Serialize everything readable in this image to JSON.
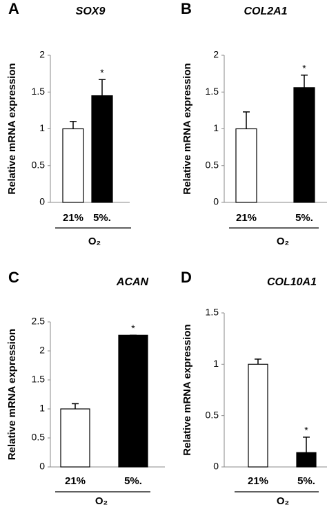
{
  "chart_data": [
    {
      "type": "bar",
      "panel": "A",
      "title": "SOX9",
      "ylabel": "Relative mRNA expression",
      "xlabel": "O₂",
      "categories": [
        "21%",
        "5%."
      ],
      "values": [
        1.0,
        1.45
      ],
      "errors": [
        0.1,
        0.22
      ],
      "annotations": [
        null,
        "*"
      ],
      "colors": [
        "#ffffff",
        "#000000"
      ],
      "ylim": [
        0,
        2
      ],
      "yticks": [
        0,
        0.5,
        1,
        1.5,
        2
      ]
    },
    {
      "type": "bar",
      "panel": "B",
      "title": "COL2A1",
      "ylabel": "Relative mRNA expression",
      "xlabel": "O₂",
      "categories": [
        "21%",
        "5%."
      ],
      "values": [
        1.0,
        1.56
      ],
      "errors": [
        0.23,
        0.17
      ],
      "annotations": [
        null,
        "*"
      ],
      "colors": [
        "#ffffff",
        "#000000"
      ],
      "ylim": [
        0,
        2
      ],
      "yticks": [
        0,
        0.5,
        1,
        1.5,
        2
      ]
    },
    {
      "type": "bar",
      "panel": "C",
      "title": "ACAN",
      "ylabel": "Relative mRNA expression",
      "xlabel": "O₂",
      "categories": [
        "21%",
        "5%."
      ],
      "values": [
        1.0,
        2.27
      ],
      "errors": [
        0.09,
        0.0
      ],
      "annotations": [
        null,
        "*"
      ],
      "colors": [
        "#ffffff",
        "#000000"
      ],
      "ylim": [
        0,
        2.5
      ],
      "yticks": [
        0,
        0.5,
        1,
        1.5,
        2,
        2.5
      ]
    },
    {
      "type": "bar",
      "panel": "D",
      "title": "COL10A1",
      "ylabel": "Relative mRNA expression",
      "xlabel": "O₂",
      "categories": [
        "21%",
        "5%."
      ],
      "values": [
        1.0,
        0.14
      ],
      "errors": [
        0.05,
        0.15
      ],
      "annotations": [
        null,
        "*"
      ],
      "colors": [
        "#ffffff",
        "#000000"
      ],
      "ylim": [
        0,
        1.5
      ],
      "yticks": [
        0,
        0.5,
        1,
        1.5
      ]
    }
  ]
}
